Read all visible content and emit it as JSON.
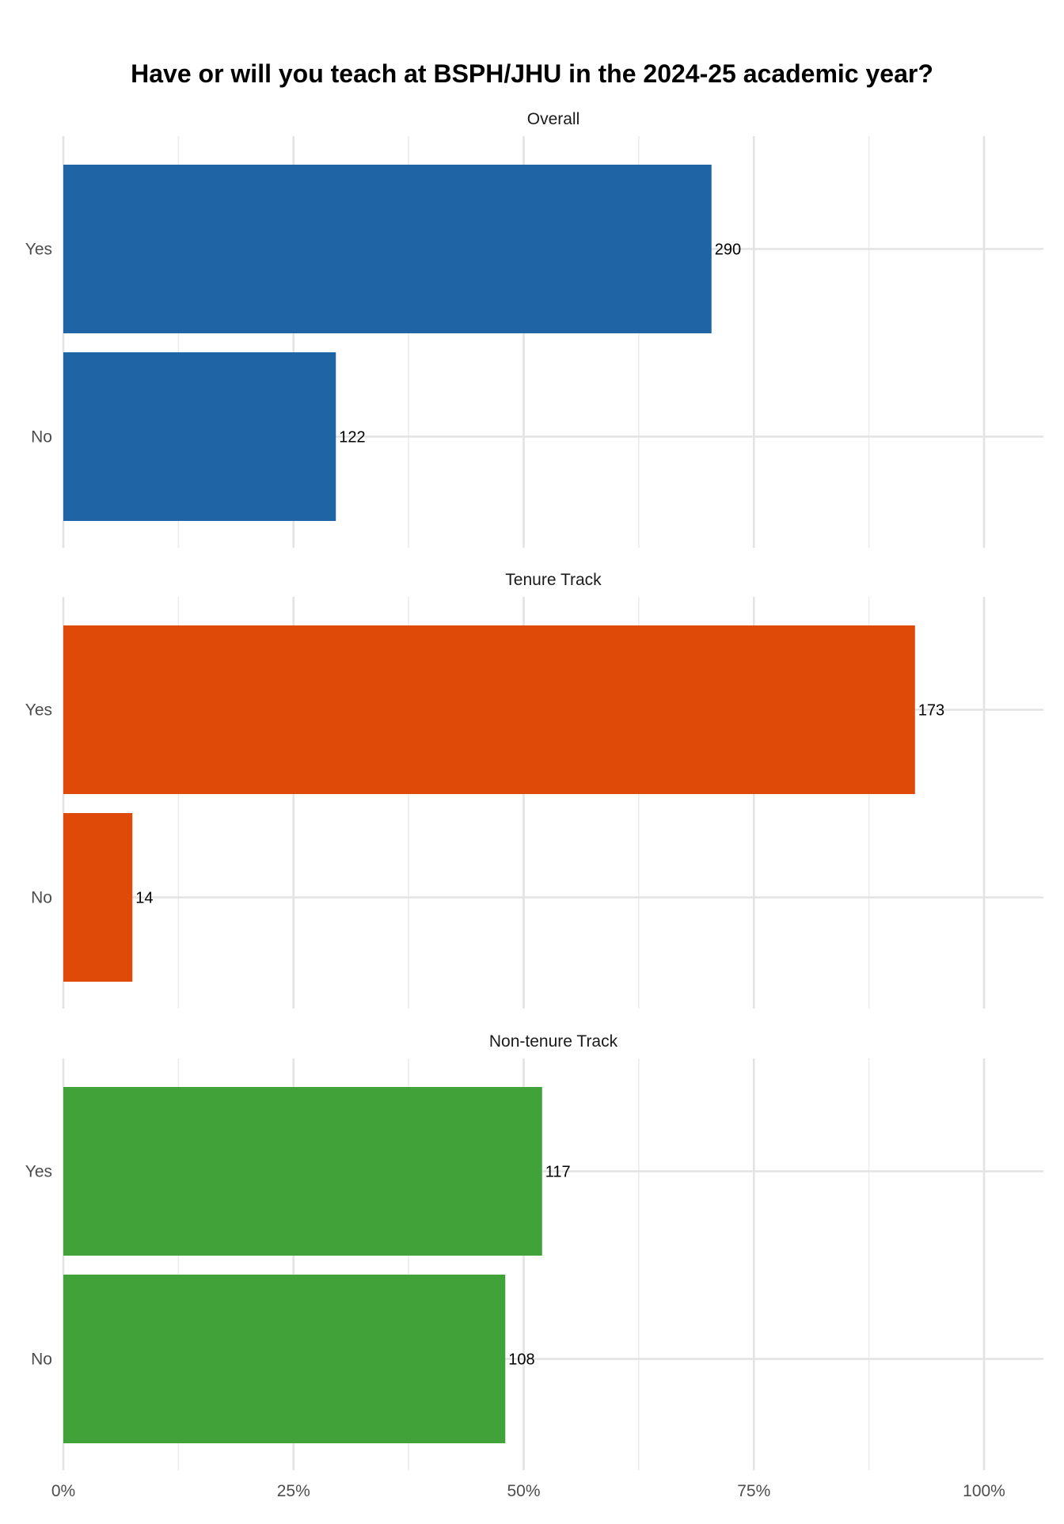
{
  "chart_data": {
    "type": "bar",
    "orientation": "horizontal",
    "title": "Have or will you teach at BSPH/JHU in the 2024-25 academic year?",
    "xlabel": "",
    "ylabel": "",
    "xlim": [
      0,
      1.06
    ],
    "x_ticks": [
      0,
      0.25,
      0.5,
      0.75,
      1.0
    ],
    "x_tick_labels": [
      "0%",
      "25%",
      "50%",
      "75%",
      "100%"
    ],
    "grid": true,
    "legend": "none",
    "categories": [
      "Yes",
      "No"
    ],
    "facets": [
      {
        "label": "Overall",
        "color": "#1f65a6",
        "bars": [
          {
            "category": "Yes",
            "fraction": 0.704,
            "count": "290"
          },
          {
            "category": "No",
            "fraction": 0.296,
            "count": "122"
          }
        ]
      },
      {
        "label": "Tenure Track",
        "color": "#df4a09",
        "bars": [
          {
            "category": "Yes",
            "fraction": 0.925,
            "count": "173"
          },
          {
            "category": "No",
            "fraction": 0.075,
            "count": "14"
          }
        ]
      },
      {
        "label": "Non-tenure Track",
        "color": "#41a23a",
        "bars": [
          {
            "category": "Yes",
            "fraction": 0.52,
            "count": "117"
          },
          {
            "category": "No",
            "fraction": 0.48,
            "count": "108"
          }
        ]
      }
    ]
  }
}
